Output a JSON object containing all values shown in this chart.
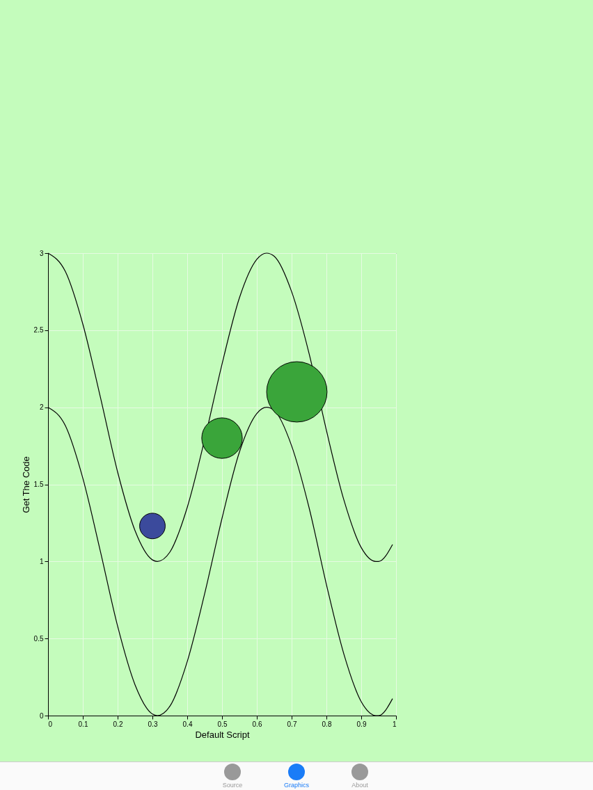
{
  "chart_data": {
    "type": "line",
    "xlabel": "Default Script",
    "ylabel": "Get The Code",
    "xlim": [
      0,
      1
    ],
    "ylim": [
      0,
      3
    ],
    "xticks": [
      0,
      0.1,
      0.2,
      0.3,
      0.4,
      0.5,
      0.6,
      0.7,
      0.8,
      0.9,
      1
    ],
    "yticks": [
      0,
      0.5,
      1,
      1.5,
      2,
      2.5,
      3
    ],
    "grid": true,
    "line_style": "solid",
    "x": [
      0,
      0.05,
      0.1,
      0.15,
      0.2,
      0.25,
      0.3,
      0.314,
      0.35,
      0.4,
      0.45,
      0.5,
      0.55,
      0.6,
      0.628,
      0.65,
      0.7,
      0.75,
      0.8,
      0.85,
      0.9,
      0.942,
      0.95,
      0.99
    ],
    "series": [
      {
        "color": "#000000",
        "values": [
          3,
          2.88,
          2.54,
          2.07,
          1.58,
          1.2,
          1.01,
          1,
          1.06,
          1.35,
          1.79,
          2.28,
          2.71,
          2.96,
          3,
          2.98,
          2.75,
          2.35,
          1.85,
          1.4,
          1.09,
          1,
          1,
          1.11
        ]
      },
      {
        "color": "#000000",
        "values": [
          2,
          1.88,
          1.54,
          1.07,
          0.58,
          0.2,
          0.01,
          0,
          0.06,
          0.35,
          0.79,
          1.28,
          1.71,
          1.96,
          2,
          1.98,
          1.75,
          1.35,
          0.85,
          0.4,
          0.09,
          0,
          0,
          0.11
        ]
      },
      {
        "type": "bubble",
        "x": [
          0.3,
          0.5,
          0.715
        ],
        "values": [
          1.23,
          1.8,
          2.1
        ],
        "sizes": [
          0.18,
          0.45,
          1
        ],
        "colors": [
          "#3b4a9c",
          "#3aa53a",
          "#3aa53a"
        ]
      }
    ],
    "annotations": [
      "Source",
      "Graphics",
      "About"
    ]
  }
}
